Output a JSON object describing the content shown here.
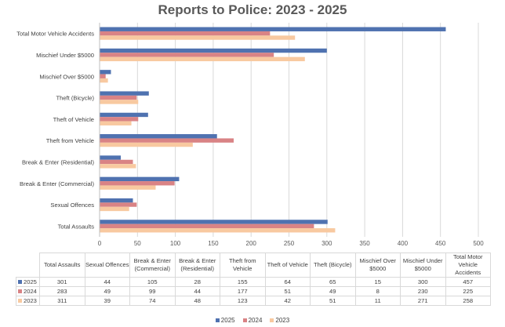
{
  "chart_data": {
    "type": "bar",
    "orientation": "horizontal",
    "title": "Reports to Police: 2023 - 2025",
    "categories": [
      "Total Assaults",
      "Sexual Offences",
      "Break & Enter (Commercial)",
      "Break & Enter (Residential)",
      "Theft from Vehicle",
      "Theft of Vehicle",
      "Theft (Bicycle)",
      "Mischief Over $5000",
      "Mischief Under $5000",
      "Total Motor Vehicle Accidents"
    ],
    "series": [
      {
        "name": "2025",
        "color": "#4f72b0",
        "values": [
          301,
          44,
          105,
          28,
          155,
          64,
          65,
          15,
          300,
          457
        ]
      },
      {
        "name": "2024",
        "color": "#d98385",
        "values": [
          283,
          49,
          99,
          44,
          177,
          51,
          49,
          8,
          230,
          225
        ]
      },
      {
        "name": "2023",
        "color": "#f8c9a0",
        "values": [
          311,
          39,
          74,
          48,
          123,
          42,
          51,
          11,
          271,
          258
        ]
      }
    ],
    "xlim": [
      0,
      500
    ],
    "xticks": [
      "0",
      "50",
      "100",
      "150",
      "200",
      "250",
      "300",
      "350",
      "400",
      "450",
      "500"
    ],
    "grid": true,
    "legend": "bottom",
    "data_table": true
  }
}
